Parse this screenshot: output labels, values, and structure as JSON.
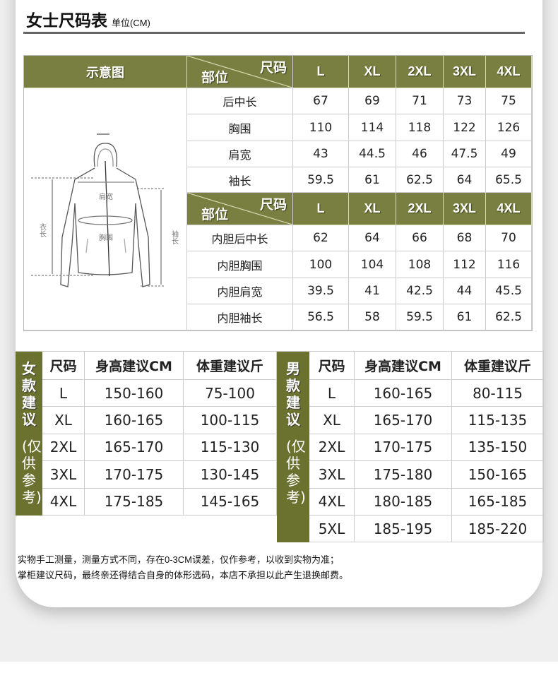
{
  "header": {
    "title": "女士尺码表",
    "unit": "单位(CM)"
  },
  "colors": {
    "accent": "#787f40",
    "side": "#6b7230"
  },
  "measure_table": {
    "diagram_label": "示意图",
    "size_label": "尺码",
    "part_label": "部位",
    "sizes": [
      "L",
      "XL",
      "2XL",
      "3XL",
      "4XL"
    ],
    "illustration_labels": {
      "shoulder": "肩宽",
      "chest": "胸围",
      "length": "衣长",
      "sleeve": "袖长"
    },
    "outer_rows": [
      {
        "label": "后中长",
        "values": [
          "67",
          "69",
          "71",
          "73",
          "75"
        ]
      },
      {
        "label": "胸围",
        "values": [
          "110",
          "114",
          "118",
          "122",
          "126"
        ]
      },
      {
        "label": "肩宽",
        "values": [
          "43",
          "44.5",
          "46",
          "47.5",
          "49"
        ]
      },
      {
        "label": "袖长",
        "values": [
          "59.5",
          "61",
          "62.5",
          "64",
          "65.5"
        ]
      }
    ],
    "inner_rows": [
      {
        "label": "内胆后中长",
        "values": [
          "62",
          "64",
          "66",
          "68",
          "70"
        ]
      },
      {
        "label": "内胆胸围",
        "values": [
          "100",
          "104",
          "108",
          "112",
          "116"
        ]
      },
      {
        "label": "内胆肩宽",
        "values": [
          "39.5",
          "41",
          "42.5",
          "44",
          "45.5"
        ]
      },
      {
        "label": "内胆袖长",
        "values": [
          "56.5",
          "58",
          "59.5",
          "61",
          "62.5"
        ]
      }
    ]
  },
  "women": {
    "side_title": "女款建议",
    "side_note": "(仅供参考)",
    "headers": [
      "尺码",
      "身高建议CM",
      "体重建议斤"
    ],
    "rows": [
      [
        "L",
        "150-160",
        "75-100"
      ],
      [
        "XL",
        "160-165",
        "100-115"
      ],
      [
        "2XL",
        "165-170",
        "115-130"
      ],
      [
        "3XL",
        "170-175",
        "130-145"
      ],
      [
        "4XL",
        "175-185",
        "145-165"
      ]
    ]
  },
  "men": {
    "side_title": "男款建议",
    "side_note": "(仅供参考)",
    "headers": [
      "尺码",
      "身高建议CM",
      "体重建议斤"
    ],
    "rows": [
      [
        "L",
        "160-165",
        "80-115"
      ],
      [
        "XL",
        "165-170",
        "115-135"
      ],
      [
        "2XL",
        "170-175",
        "135-150"
      ],
      [
        "3XL",
        "175-180",
        "150-165"
      ],
      [
        "4XL",
        "180-185",
        "165-185"
      ],
      [
        "5XL",
        "185-195",
        "185-220"
      ]
    ]
  },
  "notes": [
    "实物手工测量，测量方式不同，存在0-3CM误差，仅作参考，以收到实物为准；",
    "掌柜建议尺码，最终亲还得结合自身的体形选码，本店不承担以此产生退换邮费。"
  ]
}
